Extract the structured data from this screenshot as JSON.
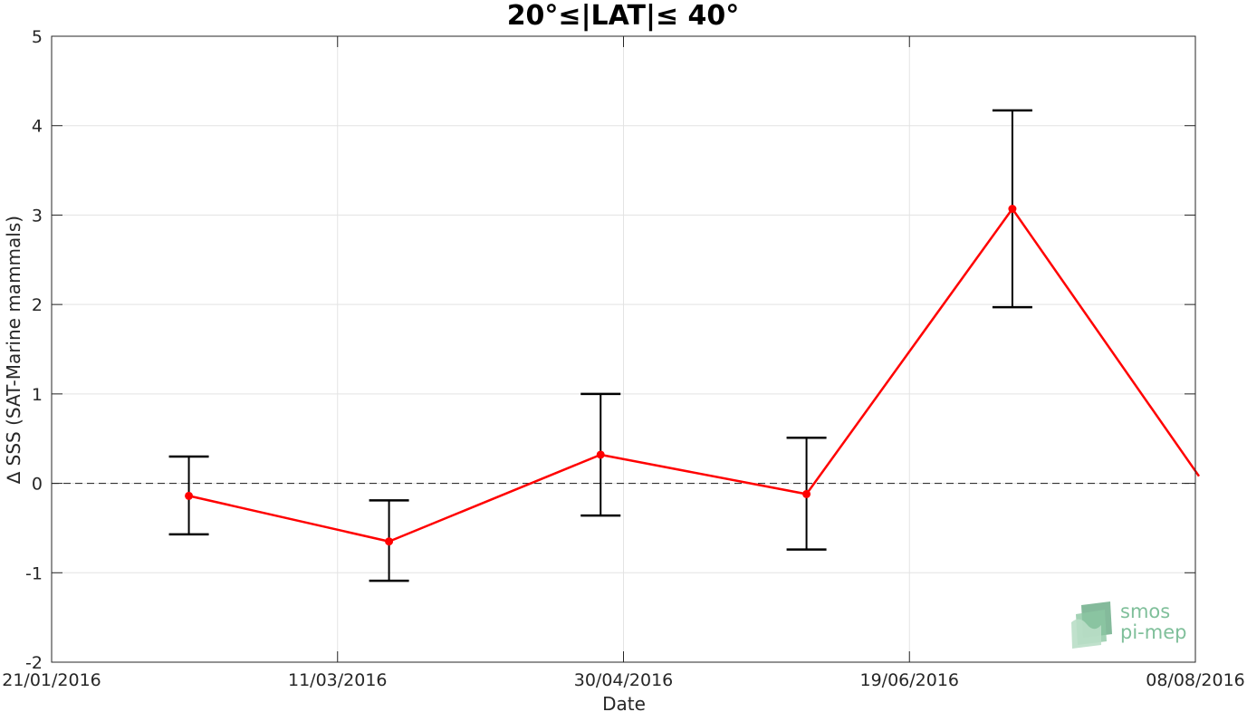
{
  "chart_data": {
    "type": "line",
    "title": "20°≤|LAT|≤ 40°",
    "xlabel": "Date",
    "ylabel": "∆ SSS (SAT-Marine mammals)",
    "x_tick_labels": [
      "21/01/2016",
      "11/03/2016",
      "30/04/2016",
      "19/06/2016",
      "08/08/2016"
    ],
    "x_ticks": [
      "2016-01-21",
      "2016-03-11",
      "2016-04-30",
      "2016-06-19",
      "2016-08-08"
    ],
    "xlim": [
      "2016-01-21",
      "2016-08-08"
    ],
    "ylim": [
      -2,
      5
    ],
    "y_ticks": [
      -2,
      -1,
      0,
      1,
      2,
      3,
      4,
      5
    ],
    "y_tick_labels": [
      "-2",
      "-1",
      "0",
      "1",
      "2",
      "3",
      "4",
      "5"
    ],
    "grid": true,
    "reference_line": {
      "y": 0,
      "style": "dashed",
      "color": "#000000"
    },
    "series": [
      {
        "color": "#ff0000",
        "x": [
          "2016-02-14",
          "2016-03-20",
          "2016-04-26",
          "2016-06-01",
          "2016-07-07",
          "2016-08-08"
        ],
        "y": [
          -0.14,
          -0.65,
          0.32,
          -0.12,
          3.07,
          0.08
        ],
        "error_lower": [
          -0.57,
          -1.09,
          -0.36,
          -0.74,
          1.97,
          null
        ],
        "error_upper": [
          0.3,
          -0.19,
          1.0,
          0.51,
          4.17,
          null
        ]
      }
    ],
    "error_bar_color": "#000000"
  },
  "logo": {
    "line1": "smos",
    "line2": "pi-mep",
    "color": "#7fbf9a"
  }
}
